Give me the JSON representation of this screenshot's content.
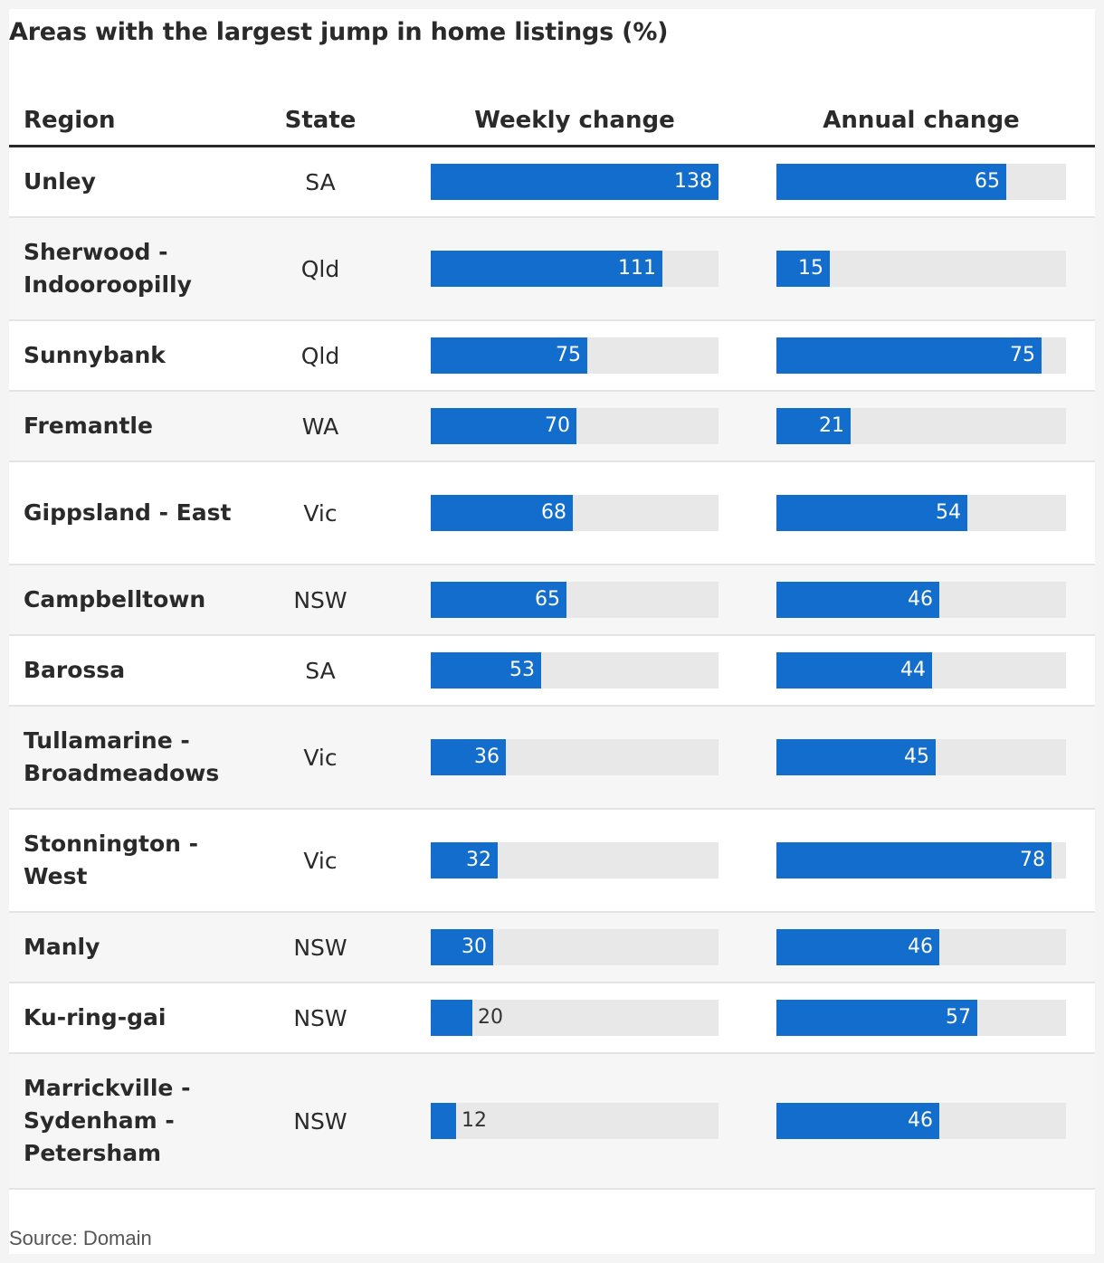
{
  "source": "Source: Domain",
  "chart_data": {
    "type": "table",
    "title": "Areas with the largest jump in home listings (%)",
    "columns": [
      "Region",
      "State",
      "Weekly change",
      "Annual change"
    ],
    "colors": {
      "bar": "#126dcc",
      "track": "#e8e8e8"
    },
    "weekly_max": 138,
    "annual_max": 82,
    "rows": [
      {
        "region": "Unley",
        "state": "SA",
        "weekly": 138,
        "annual": 65
      },
      {
        "region": "Sherwood - Indooroopilly",
        "state": "Qld",
        "weekly": 111,
        "annual": 15
      },
      {
        "region": "Sunnybank",
        "state": "Qld",
        "weekly": 75,
        "annual": 75
      },
      {
        "region": "Fremantle",
        "state": "WA",
        "weekly": 70,
        "annual": 21
      },
      {
        "region": "Gippsland - East",
        "state": "Vic",
        "weekly": 68,
        "annual": 54
      },
      {
        "region": "Campbelltown",
        "state": "NSW",
        "weekly": 65,
        "annual": 46
      },
      {
        "region": "Barossa",
        "state": "SA",
        "weekly": 53,
        "annual": 44
      },
      {
        "region": "Tullamarine - Broadmeadows",
        "state": "Vic",
        "weekly": 36,
        "annual": 45
      },
      {
        "region": "Stonnington - West",
        "state": "Vic",
        "weekly": 32,
        "annual": 78
      },
      {
        "region": "Manly",
        "state": "NSW",
        "weekly": 30,
        "annual": 46
      },
      {
        "region": "Ku-ring-gai",
        "state": "NSW",
        "weekly": 20,
        "annual": 57
      },
      {
        "region": "Marrickville - Sydenham - Petersham",
        "state": "NSW",
        "weekly": 12,
        "annual": 46
      }
    ]
  }
}
